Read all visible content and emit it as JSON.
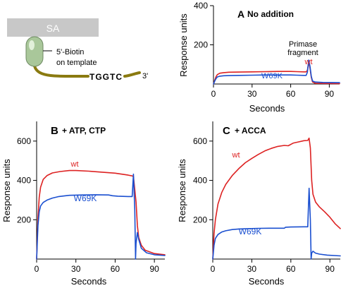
{
  "schematic": {
    "surface_label": "SA",
    "biotin_label_line1": "5'-Biotin",
    "biotin_label_line2": "on template",
    "sequence": "TGGTC",
    "three_prime": "3'"
  },
  "colors": {
    "wt": "#dd2222",
    "w69k": "#1a4fd0",
    "axis": "#000000",
    "surface": "#c8c8c8",
    "bead": "#a9c79a",
    "dna": "#8a7a10"
  },
  "chart_data": [
    {
      "type": "line",
      "panel": "A",
      "title": "No addition",
      "xlabel": "Seconds",
      "ylabel": "Response units",
      "xlim": [
        0,
        98
      ],
      "ylim": [
        0,
        400
      ],
      "xticks": [
        0,
        30,
        60,
        90
      ],
      "yticks": [
        200,
        400
      ],
      "annotation_line1": "Primase",
      "annotation_line2": "fragment",
      "series": [
        {
          "name": "wt",
          "color": "#dd2222",
          "points": [
            [
              0,
              0
            ],
            [
              1,
              20
            ],
            [
              2,
              38
            ],
            [
              3,
              48
            ],
            [
              5,
              55
            ],
            [
              8,
              58
            ],
            [
              12,
              60
            ],
            [
              20,
              61
            ],
            [
              30,
              62
            ],
            [
              40,
              63
            ],
            [
              50,
              64
            ],
            [
              60,
              64
            ],
            [
              65,
              63
            ],
            [
              70,
              62
            ],
            [
              72,
              62
            ],
            [
              73,
              70
            ],
            [
              74,
              112
            ],
            [
              75,
              80
            ],
            [
              76,
              35
            ],
            [
              77,
              10
            ],
            [
              79,
              4
            ],
            [
              85,
              3
            ],
            [
              98,
              2
            ]
          ]
        },
        {
          "name": "W69K",
          "color": "#1a4fd0",
          "points": [
            [
              0,
              0
            ],
            [
              1,
              15
            ],
            [
              2,
              28
            ],
            [
              3,
              36
            ],
            [
              5,
              40
            ],
            [
              8,
              42
            ],
            [
              12,
              43
            ],
            [
              20,
              44
            ],
            [
              30,
              45
            ],
            [
              40,
              46
            ],
            [
              50,
              46
            ],
            [
              60,
              46
            ],
            [
              65,
              45
            ],
            [
              70,
              44
            ],
            [
              72,
              44
            ],
            [
              73,
              60
            ],
            [
              74,
              122
            ],
            [
              75,
              90
            ],
            [
              76,
              40
            ],
            [
              77,
              15
            ],
            [
              79,
              10
            ],
            [
              85,
              8
            ],
            [
              98,
              7
            ]
          ]
        }
      ]
    },
    {
      "type": "line",
      "panel": "B",
      "title": "+ ATP, CTP",
      "xlabel": "Seconds",
      "ylabel": "Response units",
      "xlim": [
        0,
        98
      ],
      "ylim": [
        0,
        700
      ],
      "xticks": [
        0,
        30,
        60,
        90
      ],
      "yticks": [
        200,
        400,
        600
      ],
      "series": [
        {
          "name": "wt",
          "color": "#dd2222",
          "points": [
            [
              0,
              0
            ],
            [
              1,
              210
            ],
            [
              2,
              315
            ],
            [
              3,
              365
            ],
            [
              5,
              405
            ],
            [
              8,
              425
            ],
            [
              12,
              438
            ],
            [
              18,
              445
            ],
            [
              25,
              450
            ],
            [
              30,
              450
            ],
            [
              40,
              447
            ],
            [
              50,
              442
            ],
            [
              60,
              437
            ],
            [
              65,
              432
            ],
            [
              70,
              427
            ],
            [
              73,
              423
            ],
            [
              74,
              420
            ],
            [
              76,
              290
            ],
            [
              77,
              170
            ],
            [
              78,
              110
            ],
            [
              80,
              70
            ],
            [
              83,
              45
            ],
            [
              90,
              28
            ],
            [
              98,
              22
            ]
          ]
        },
        {
          "name": "W69K",
          "color": "#1a4fd0",
          "points": [
            [
              0,
              0
            ],
            [
              1,
              170
            ],
            [
              2,
              240
            ],
            [
              3,
              270
            ],
            [
              5,
              288
            ],
            [
              8,
              300
            ],
            [
              12,
              310
            ],
            [
              17,
              318
            ],
            [
              25,
              324
            ],
            [
              35,
              326
            ],
            [
              45,
              327
            ],
            [
              55,
              326
            ],
            [
              58,
              322
            ],
            [
              62,
              320
            ],
            [
              70,
              318
            ],
            [
              73,
              318
            ],
            [
              74,
              432
            ],
            [
              75,
              250
            ],
            [
              75.6,
              0
            ],
            [
              76,
              80
            ],
            [
              77,
              135
            ],
            [
              78,
              100
            ],
            [
              80,
              55
            ],
            [
              84,
              32
            ],
            [
              90,
              22
            ],
            [
              98,
              18
            ]
          ]
        }
      ]
    },
    {
      "type": "line",
      "panel": "C",
      "title": "+ ACCA",
      "xlabel": "Seconds",
      "ylabel": "Response units",
      "xlim": [
        0,
        98
      ],
      "ylim": [
        0,
        700
      ],
      "xticks": [
        0,
        30,
        60,
        90
      ],
      "yticks": [
        200,
        400,
        600
      ],
      "series": [
        {
          "name": "wt",
          "color": "#dd2222",
          "points": [
            [
              0,
              0
            ],
            [
              1,
              130
            ],
            [
              2,
              200
            ],
            [
              4,
              280
            ],
            [
              7,
              340
            ],
            [
              10,
              380
            ],
            [
              15,
              425
            ],
            [
              20,
              460
            ],
            [
              25,
              490
            ],
            [
              30,
              512
            ],
            [
              35,
              532
            ],
            [
              40,
              550
            ],
            [
              45,
              563
            ],
            [
              50,
              573
            ],
            [
              55,
              578
            ],
            [
              58,
              576
            ],
            [
              62,
              590
            ],
            [
              66,
              596
            ],
            [
              70,
              602
            ],
            [
              73,
              603
            ],
            [
              74,
              615
            ],
            [
              75,
              565
            ],
            [
              76,
              400
            ],
            [
              77,
              330
            ],
            [
              79,
              290
            ],
            [
              82,
              265
            ],
            [
              86,
              240
            ],
            [
              90,
              213
            ],
            [
              94,
              180
            ],
            [
              98,
              155
            ]
          ]
        },
        {
          "name": "W69K",
          "color": "#1a4fd0",
          "points": [
            [
              0,
              0
            ],
            [
              1,
              70
            ],
            [
              2,
              105
            ],
            [
              4,
              125
            ],
            [
              7,
              138
            ],
            [
              10,
              144
            ],
            [
              15,
              150
            ],
            [
              20,
              153
            ],
            [
              25,
              154
            ],
            [
              35,
              156
            ],
            [
              45,
              157
            ],
            [
              55,
              157
            ],
            [
              56,
              162
            ],
            [
              60,
              163
            ],
            [
              70,
              164
            ],
            [
              73,
              164
            ],
            [
              74,
              360
            ],
            [
              75,
              200
            ],
            [
              75.6,
              0
            ],
            [
              76,
              30
            ],
            [
              77,
              40
            ],
            [
              79,
              30
            ],
            [
              82,
              25
            ],
            [
              88,
              20
            ],
            [
              98,
              16
            ]
          ]
        }
      ]
    }
  ]
}
